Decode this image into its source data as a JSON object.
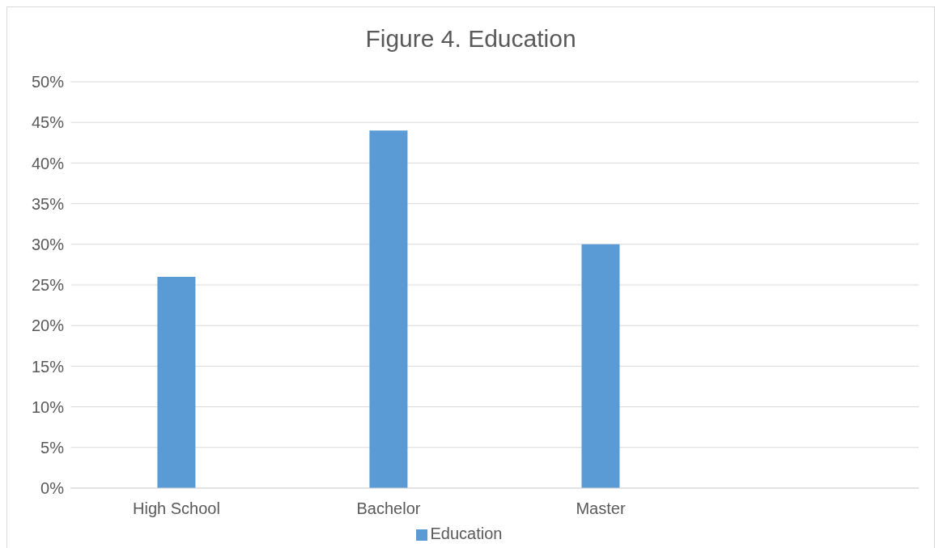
{
  "chart_data": {
    "type": "bar",
    "title": "Figure 4. Education",
    "categories": [
      "High School",
      "Bachelor",
      "Master",
      null
    ],
    "series": [
      {
        "name": "Education",
        "color": "#5b9bd5",
        "values": [
          26,
          44,
          30,
          null
        ]
      }
    ],
    "ylim": [
      0,
      50
    ],
    "yticks": [
      {
        "value": 0,
        "label": "0%"
      },
      {
        "value": 5,
        "label": "5%"
      },
      {
        "value": 10,
        "label": "10%"
      },
      {
        "value": 15,
        "label": "15%"
      },
      {
        "value": 20,
        "label": "20%"
      },
      {
        "value": 25,
        "label": "25%"
      },
      {
        "value": 30,
        "label": "30%"
      },
      {
        "value": 35,
        "label": "35%"
      },
      {
        "value": 40,
        "label": "40%"
      },
      {
        "value": 45,
        "label": "45%"
      },
      {
        "value": 50,
        "label": "50%"
      }
    ],
    "grid": "y",
    "legend": "bottom"
  }
}
